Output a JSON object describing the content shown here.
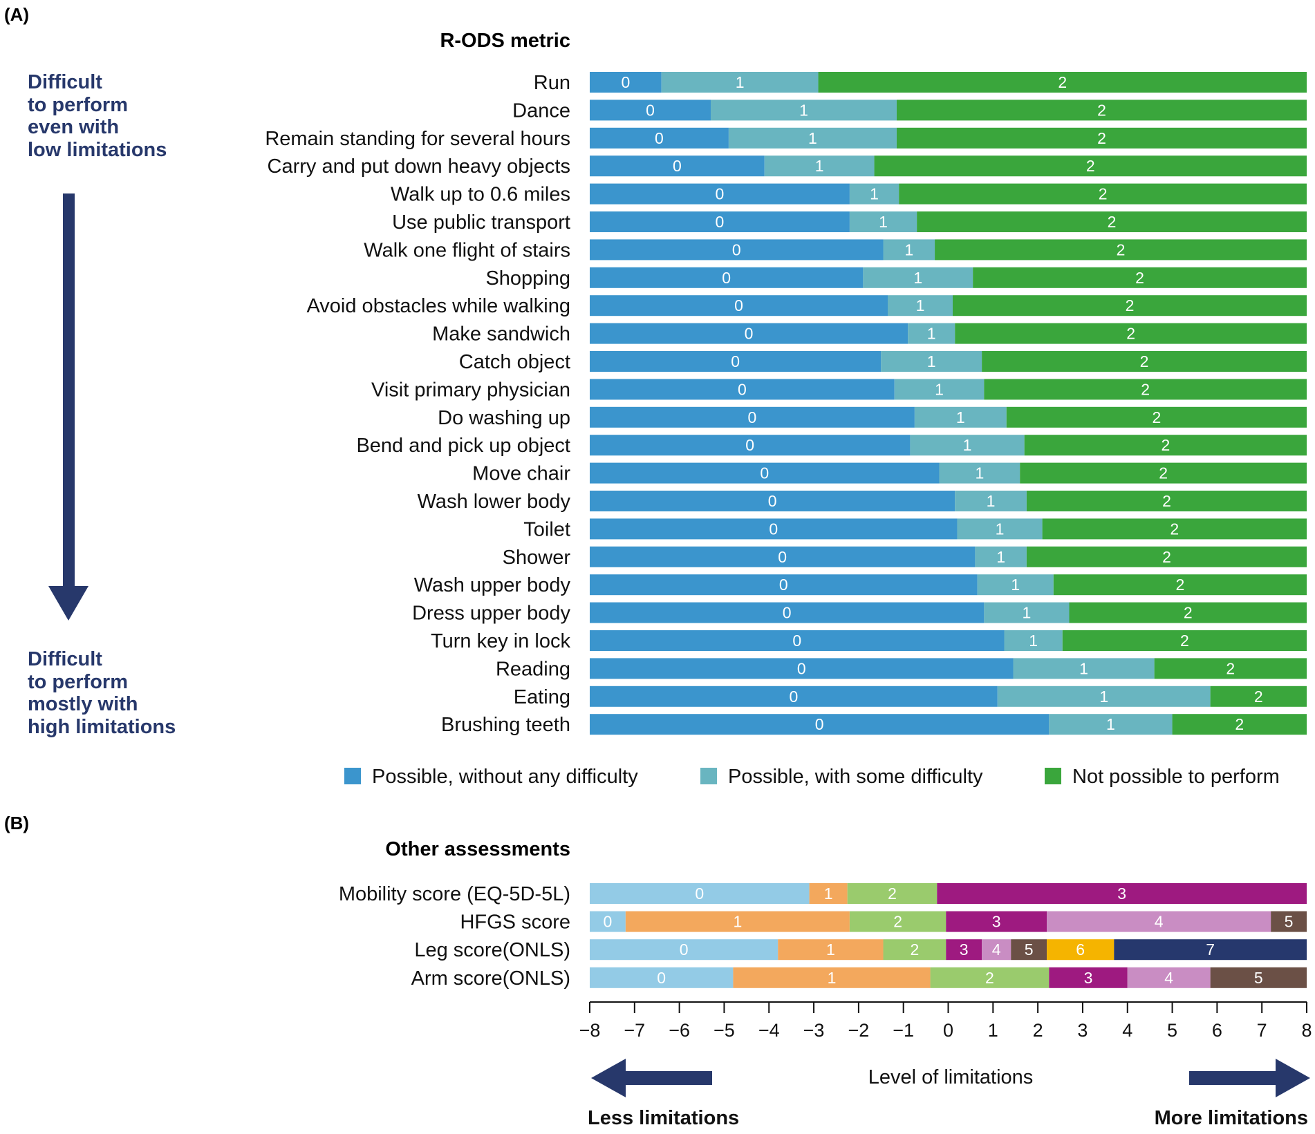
{
  "panel_a_label": "(A)",
  "panel_b_label": "(B)",
  "side_annotation": {
    "top": [
      "Difficult",
      "to perform",
      "even with",
      "low limitations"
    ],
    "bottom": [
      "Difficult",
      "to perform",
      "mostly with",
      "high limitations"
    ]
  },
  "footer": {
    "less": "Less limitations",
    "more": "More limitations"
  },
  "colors": {
    "arrow": "#27386b",
    "rods": [
      "#3b95cd",
      "#69b5c0",
      "#3aa63c"
    ],
    "other": [
      "#93cbe6",
      "#f3a85d",
      "#9acb6d",
      "#9e1a80",
      "#c98dc3",
      "#6b5046",
      "#f5b400",
      "#26386d"
    ]
  },
  "chart_data": [
    {
      "type": "bar",
      "orientation": "horizontal-stacked",
      "title": "R-ODS metric",
      "xlim": [
        -8,
        8
      ],
      "segment_categories": [
        "0",
        "1",
        "2"
      ],
      "categories": [
        "Run",
        "Dance",
        "Remain standing for several hours",
        "Carry and put down heavy objects",
        "Walk up to 0.6 miles",
        "Use public transport",
        "Walk one flight of stairs",
        "Shopping",
        "Avoid obstacles while walking",
        "Make sandwich",
        "Catch object",
        "Visit primary physician",
        "Do washing up",
        "Bend and pick up object",
        "Move chair",
        "Wash lower body",
        "Toilet",
        "Shower",
        "Wash upper body",
        "Dress upper body",
        "Turn key in lock",
        "Reading",
        "Eating",
        "Brushing teeth"
      ],
      "boundaries": [
        [
          -6.4,
          -2.9
        ],
        [
          -5.3,
          -1.15
        ],
        [
          -4.9,
          -1.15
        ],
        [
          -4.1,
          -1.65
        ],
        [
          -2.2,
          -1.1
        ],
        [
          -2.2,
          -0.7
        ],
        [
          -1.45,
          -0.3
        ],
        [
          -1.9,
          0.55
        ],
        [
          -1.35,
          0.1
        ],
        [
          -0.9,
          0.15
        ],
        [
          -1.5,
          0.75
        ],
        [
          -1.2,
          0.8
        ],
        [
          -0.75,
          1.3
        ],
        [
          -0.85,
          1.7
        ],
        [
          -0.2,
          1.6
        ],
        [
          0.15,
          1.75
        ],
        [
          0.2,
          2.1
        ],
        [
          0.6,
          1.75
        ],
        [
          0.65,
          2.35
        ],
        [
          0.8,
          2.7
        ],
        [
          1.25,
          2.55
        ],
        [
          1.45,
          4.6
        ],
        [
          1.1,
          5.85
        ],
        [
          2.25,
          5.0
        ]
      ],
      "legend": [
        "Possible, without any difficulty",
        "Possible, with some difficulty",
        "Not possible to perform"
      ],
      "legend_position": "bottom"
    },
    {
      "type": "bar",
      "orientation": "horizontal-stacked",
      "title": "Other assessments",
      "xlabel": "Level of limitations",
      "xlim": [
        -8,
        8
      ],
      "xticks": [
        "−8",
        "−7",
        "−6",
        "−5",
        "−4",
        "−3",
        "−2",
        "−1",
        "0",
        "1",
        "2",
        "3",
        "4",
        "5",
        "6",
        "7",
        "8"
      ],
      "series": [
        {
          "name": "Mobility score (EQ-5D-5L)",
          "segments": [
            "0",
            "1",
            "2",
            "3"
          ],
          "boundaries": [
            -3.1,
            -2.25,
            -0.25
          ]
        },
        {
          "name": "HFGS score",
          "segments": [
            "0",
            "1",
            "2",
            "3",
            "4",
            "5"
          ],
          "boundaries": [
            -7.2,
            -2.2,
            -0.05,
            2.2,
            7.2
          ]
        },
        {
          "name": "Leg score(ONLS)",
          "segments": [
            "0",
            "1",
            "2",
            "3",
            "4",
            "5",
            "6",
            "7"
          ],
          "boundaries": [
            -3.8,
            -1.45,
            -0.05,
            0.75,
            1.4,
            2.2,
            3.7
          ]
        },
        {
          "name": "Arm score(ONLS)",
          "segments": [
            "0",
            "1",
            "2",
            "3",
            "4",
            "5"
          ],
          "boundaries": [
            -4.8,
            -0.4,
            2.25,
            4.0,
            5.85
          ]
        }
      ]
    }
  ]
}
